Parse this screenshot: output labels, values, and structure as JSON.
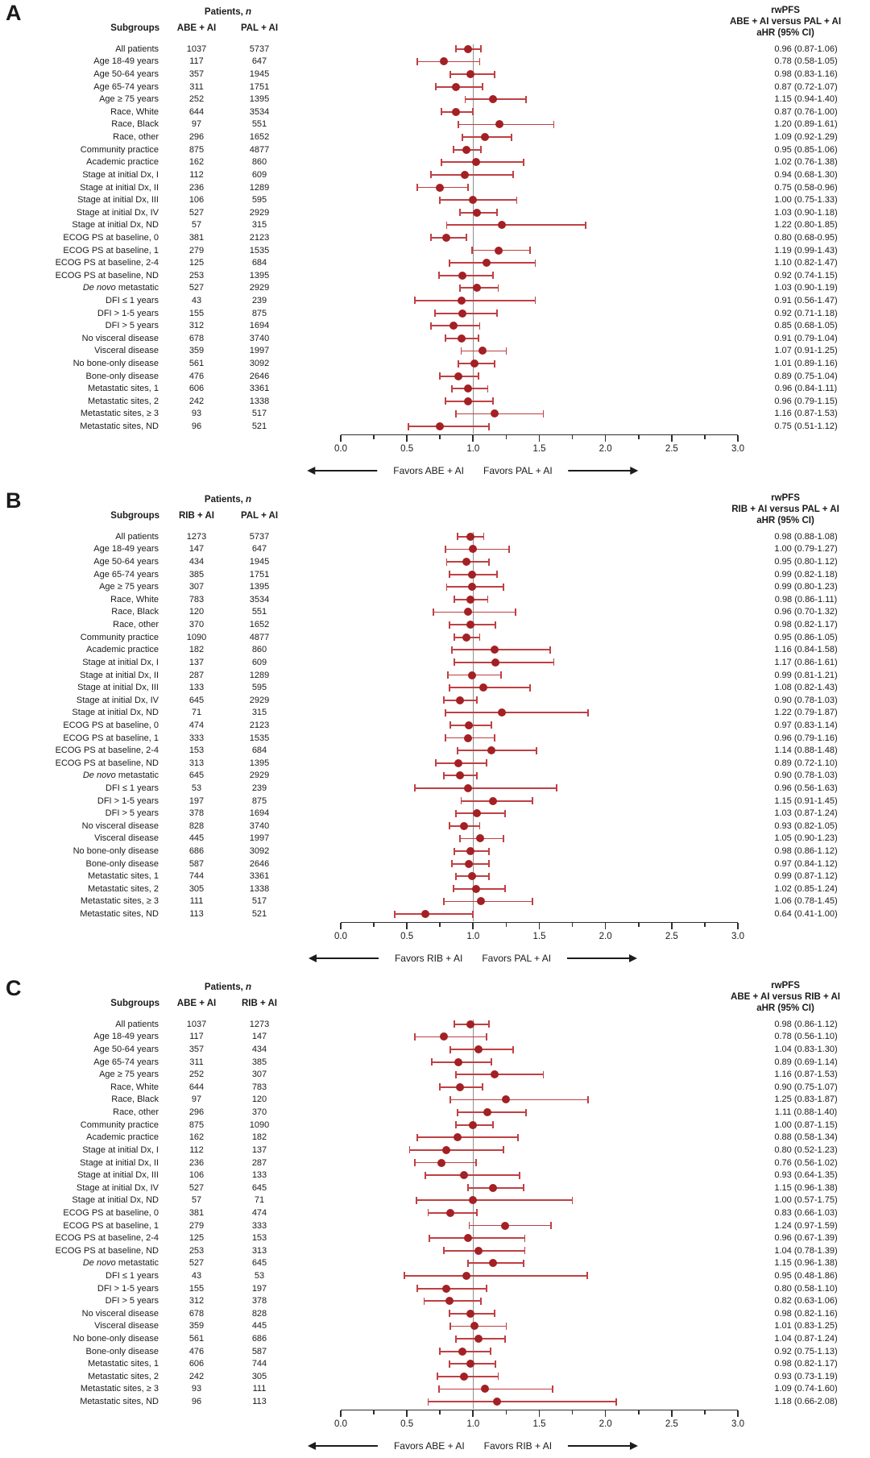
{
  "colors": {
    "marker": "#a32024",
    "ci_line": "#bf4043",
    "reference_line": "#8f8f8f",
    "axis_line": "#2e2e2e",
    "text": "#1a1a1a"
  },
  "axis": {
    "min": 0,
    "max": 3,
    "major_step": 0.5,
    "minor_step": 0.25,
    "reference": 1.0,
    "tick_labels": [
      "0.0",
      "0.5",
      "1.0",
      "1.5",
      "2.0",
      "2.5",
      "3.0"
    ]
  },
  "chart_data": [
    {
      "type": "scatter",
      "style": "forest-plot",
      "panel_label": "A",
      "patients_header_prefix": "Patients,",
      "patients_header_n": "n",
      "subgroups_header": "Subgroups",
      "arm1": "ABE + AI",
      "arm2": "PAL + AI",
      "right_header_line1": "rwPFS",
      "right_header_line2": "ABE + AI versus PAL + AI",
      "right_header_line3": "aHR (95% CI)",
      "favors_left": "Favors ABE + AI",
      "favors_right": "Favors PAL + AI",
      "rows": [
        {
          "label": "All patients",
          "n1": "1037",
          "n2": "5737",
          "hr": 0.96,
          "lo": 0.87,
          "hi": 1.06
        },
        {
          "label": "Age 18-49 years",
          "n1": "117",
          "n2": "647",
          "hr": 0.78,
          "lo": 0.58,
          "hi": 1.05
        },
        {
          "label": "Age 50-64 years",
          "n1": "357",
          "n2": "1945",
          "hr": 0.98,
          "lo": 0.83,
          "hi": 1.16
        },
        {
          "label": "Age 65-74 years",
          "n1": "311",
          "n2": "1751",
          "hr": 0.87,
          "lo": 0.72,
          "hi": 1.07
        },
        {
          "label": "Age ≥ 75 years",
          "n1": "252",
          "n2": "1395",
          "hr": 1.15,
          "lo": 0.94,
          "hi": 1.4
        },
        {
          "label": "Race, White",
          "n1": "644",
          "n2": "3534",
          "hr": 0.87,
          "lo": 0.76,
          "hi": 1.0
        },
        {
          "label": "Race, Black",
          "n1": "97",
          "n2": "551",
          "hr": 1.2,
          "lo": 0.89,
          "hi": 1.61
        },
        {
          "label": "Race, other",
          "n1": "296",
          "n2": "1652",
          "hr": 1.09,
          "lo": 0.92,
          "hi": 1.29
        },
        {
          "label": "Community practice",
          "n1": "875",
          "n2": "4877",
          "hr": 0.95,
          "lo": 0.85,
          "hi": 1.06
        },
        {
          "label": "Academic practice",
          "n1": "162",
          "n2": "860",
          "hr": 1.02,
          "lo": 0.76,
          "hi": 1.38
        },
        {
          "label": "Stage at initial Dx, I",
          "n1": "112",
          "n2": "609",
          "hr": 0.94,
          "lo": 0.68,
          "hi": 1.3
        },
        {
          "label": "Stage at initial Dx, II",
          "n1": "236",
          "n2": "1289",
          "hr": 0.75,
          "lo": 0.58,
          "hi": 0.96
        },
        {
          "label": "Stage at initial Dx, III",
          "n1": "106",
          "n2": "595",
          "hr": 1.0,
          "lo": 0.75,
          "hi": 1.33
        },
        {
          "label": "Stage at initial Dx, IV",
          "n1": "527",
          "n2": "2929",
          "hr": 1.03,
          "lo": 0.9,
          "hi": 1.18
        },
        {
          "label": "Stage at initial Dx, ND",
          "n1": "57",
          "n2": "315",
          "hr": 1.22,
          "lo": 0.8,
          "hi": 1.85
        },
        {
          "label": "ECOG PS at baseline, 0",
          "n1": "381",
          "n2": "2123",
          "hr": 0.8,
          "lo": 0.68,
          "hi": 0.95
        },
        {
          "label": "ECOG PS at baseline, 1",
          "n1": "279",
          "n2": "1535",
          "hr": 1.19,
          "lo": 0.99,
          "hi": 1.43
        },
        {
          "label": "ECOG PS at baseline, 2-4",
          "n1": "125",
          "n2": "684",
          "hr": 1.1,
          "lo": 0.82,
          "hi": 1.47
        },
        {
          "label": "ECOG PS at baseline, ND",
          "n1": "253",
          "n2": "1395",
          "hr": 0.92,
          "lo": 0.74,
          "hi": 1.15
        },
        {
          "em": "De novo",
          "label": "metastatic",
          "n1": "527",
          "n2": "2929",
          "hr": 1.03,
          "lo": 0.9,
          "hi": 1.19
        },
        {
          "label": "DFI ≤ 1 years",
          "n1": "43",
          "n2": "239",
          "hr": 0.91,
          "lo": 0.56,
          "hi": 1.47
        },
        {
          "label": "DFI > 1-5 years",
          "n1": "155",
          "n2": "875",
          "hr": 0.92,
          "lo": 0.71,
          "hi": 1.18
        },
        {
          "label": "DFI > 5 years",
          "n1": "312",
          "n2": "1694",
          "hr": 0.85,
          "lo": 0.68,
          "hi": 1.05
        },
        {
          "label": "No visceral disease",
          "n1": "678",
          "n2": "3740",
          "hr": 0.91,
          "lo": 0.79,
          "hi": 1.04
        },
        {
          "label": "Visceral disease",
          "n1": "359",
          "n2": "1997",
          "hr": 1.07,
          "lo": 0.91,
          "hi": 1.25
        },
        {
          "label": "No bone-only disease",
          "n1": "561",
          "n2": "3092",
          "hr": 1.01,
          "lo": 0.89,
          "hi": 1.16
        },
        {
          "label": "Bone-only disease",
          "n1": "476",
          "n2": "2646",
          "hr": 0.89,
          "lo": 0.75,
          "hi": 1.04
        },
        {
          "label": "Metastatic sites, 1",
          "n1": "606",
          "n2": "3361",
          "hr": 0.96,
          "lo": 0.84,
          "hi": 1.11
        },
        {
          "label": "Metastatic sites, 2",
          "n1": "242",
          "n2": "1338",
          "hr": 0.96,
          "lo": 0.79,
          "hi": 1.15
        },
        {
          "label": "Metastatic sites, ≥ 3",
          "n1": "93",
          "n2": "517",
          "hr": 1.16,
          "lo": 0.87,
          "hi": 1.53
        },
        {
          "label": "Metastatic sites, ND",
          "n1": "96",
          "n2": "521",
          "hr": 0.75,
          "lo": 0.51,
          "hi": 1.12
        }
      ]
    },
    {
      "type": "scatter",
      "style": "forest-plot",
      "panel_label": "B",
      "patients_header_prefix": "Patients,",
      "patients_header_n": "n",
      "subgroups_header": "Subgroups",
      "arm1": "RIB + AI",
      "arm2": "PAL + AI",
      "right_header_line1": "rwPFS",
      "right_header_line2": "RIB + AI versus PAL + AI",
      "right_header_line3": "aHR (95% CI)",
      "favors_left": "Favors RIB + AI",
      "favors_right": "Favors PAL + AI",
      "rows": [
        {
          "label": "All patients",
          "n1": "1273",
          "n2": "5737",
          "hr": 0.98,
          "lo": 0.88,
          "hi": 1.08
        },
        {
          "label": "Age 18-49 years",
          "n1": "147",
          "n2": "647",
          "hr": 1.0,
          "lo": 0.79,
          "hi": 1.27
        },
        {
          "label": "Age 50-64 years",
          "n1": "434",
          "n2": "1945",
          "hr": 0.95,
          "lo": 0.8,
          "hi": 1.12
        },
        {
          "label": "Age 65-74 years",
          "n1": "385",
          "n2": "1751",
          "hr": 0.99,
          "lo": 0.82,
          "hi": 1.18
        },
        {
          "label": "Age ≥ 75 years",
          "n1": "307",
          "n2": "1395",
          "hr": 0.99,
          "lo": 0.8,
          "hi": 1.23
        },
        {
          "label": "Race, White",
          "n1": "783",
          "n2": "3534",
          "hr": 0.98,
          "lo": 0.86,
          "hi": 1.11
        },
        {
          "label": "Race, Black",
          "n1": "120",
          "n2": "551",
          "hr": 0.96,
          "lo": 0.7,
          "hi": 1.32
        },
        {
          "label": "Race, other",
          "n1": "370",
          "n2": "1652",
          "hr": 0.98,
          "lo": 0.82,
          "hi": 1.17
        },
        {
          "label": "Community practice",
          "n1": "1090",
          "n2": "4877",
          "hr": 0.95,
          "lo": 0.86,
          "hi": 1.05
        },
        {
          "label": "Academic practice",
          "n1": "182",
          "n2": "860",
          "hr": 1.16,
          "lo": 0.84,
          "hi": 1.58
        },
        {
          "label": "Stage at initial Dx, I",
          "n1": "137",
          "n2": "609",
          "hr": 1.17,
          "lo": 0.86,
          "hi": 1.61
        },
        {
          "label": "Stage at initial Dx, II",
          "n1": "287",
          "n2": "1289",
          "hr": 0.99,
          "lo": 0.81,
          "hi": 1.21
        },
        {
          "label": "Stage at initial Dx, III",
          "n1": "133",
          "n2": "595",
          "hr": 1.08,
          "lo": 0.82,
          "hi": 1.43
        },
        {
          "label": "Stage at initial Dx, IV",
          "n1": "645",
          "n2": "2929",
          "hr": 0.9,
          "lo": 0.78,
          "hi": 1.03
        },
        {
          "label": "Stage at initial Dx, ND",
          "n1": "71",
          "n2": "315",
          "hr": 1.22,
          "lo": 0.79,
          "hi": 1.87
        },
        {
          "label": "ECOG PS at baseline, 0",
          "n1": "474",
          "n2": "2123",
          "hr": 0.97,
          "lo": 0.83,
          "hi": 1.14
        },
        {
          "label": "ECOG PS at baseline, 1",
          "n1": "333",
          "n2": "1535",
          "hr": 0.96,
          "lo": 0.79,
          "hi": 1.16
        },
        {
          "label": "ECOG PS at baseline, 2-4",
          "n1": "153",
          "n2": "684",
          "hr": 1.14,
          "lo": 0.88,
          "hi": 1.48
        },
        {
          "label": "ECOG PS at baseline, ND",
          "n1": "313",
          "n2": "1395",
          "hr": 0.89,
          "lo": 0.72,
          "hi": 1.1
        },
        {
          "em": "De novo",
          "label": "metastatic",
          "n1": "645",
          "n2": "2929",
          "hr": 0.9,
          "lo": 0.78,
          "hi": 1.03
        },
        {
          "label": "DFI ≤ 1 years",
          "n1": "53",
          "n2": "239",
          "hr": 0.96,
          "lo": 0.56,
          "hi": 1.63
        },
        {
          "label": "DFI > 1-5 years",
          "n1": "197",
          "n2": "875",
          "hr": 1.15,
          "lo": 0.91,
          "hi": 1.45
        },
        {
          "label": "DFI > 5 years",
          "n1": "378",
          "n2": "1694",
          "hr": 1.03,
          "lo": 0.87,
          "hi": 1.24
        },
        {
          "label": "No visceral disease",
          "n1": "828",
          "n2": "3740",
          "hr": 0.93,
          "lo": 0.82,
          "hi": 1.05
        },
        {
          "label": "Visceral disease",
          "n1": "445",
          "n2": "1997",
          "hr": 1.05,
          "lo": 0.9,
          "hi": 1.23
        },
        {
          "label": "No bone-only disease",
          "n1": "686",
          "n2": "3092",
          "hr": 0.98,
          "lo": 0.86,
          "hi": 1.12
        },
        {
          "label": "Bone-only disease",
          "n1": "587",
          "n2": "2646",
          "hr": 0.97,
          "lo": 0.84,
          "hi": 1.12
        },
        {
          "label": "Metastatic sites, 1",
          "n1": "744",
          "n2": "3361",
          "hr": 0.99,
          "lo": 0.87,
          "hi": 1.12
        },
        {
          "label": "Metastatic sites, 2",
          "n1": "305",
          "n2": "1338",
          "hr": 1.02,
          "lo": 0.85,
          "hi": 1.24
        },
        {
          "label": "Metastatic sites, ≥ 3",
          "n1": "111",
          "n2": "517",
          "hr": 1.06,
          "lo": 0.78,
          "hi": 1.45
        },
        {
          "label": "Metastatic sites, ND",
          "n1": "113",
          "n2": "521",
          "hr": 0.64,
          "lo": 0.41,
          "hi": 1.0
        }
      ]
    },
    {
      "type": "scatter",
      "style": "forest-plot",
      "panel_label": "C",
      "patients_header_prefix": "Patients,",
      "patients_header_n": "n",
      "subgroups_header": "Subgroups",
      "arm1": "ABE + AI",
      "arm2": "RIB + AI",
      "right_header_line1": "rwPFS",
      "right_header_line2": "ABE + AI versus RIB + AI",
      "right_header_line3": "aHR (95% CI)",
      "favors_left": "Favors ABE + AI",
      "favors_right": "Favors RIB + AI",
      "rows": [
        {
          "label": "All patients",
          "n1": "1037",
          "n2": "1273",
          "hr": 0.98,
          "lo": 0.86,
          "hi": 1.12
        },
        {
          "label": "Age 18-49 years",
          "n1": "117",
          "n2": "147",
          "hr": 0.78,
          "lo": 0.56,
          "hi": 1.1
        },
        {
          "label": "Age 50-64 years",
          "n1": "357",
          "n2": "434",
          "hr": 1.04,
          "lo": 0.83,
          "hi": 1.3
        },
        {
          "label": "Age 65-74 years",
          "n1": "311",
          "n2": "385",
          "hr": 0.89,
          "lo": 0.69,
          "hi": 1.14
        },
        {
          "label": "Age ≥ 75 years",
          "n1": "252",
          "n2": "307",
          "hr": 1.16,
          "lo": 0.87,
          "hi": 1.53
        },
        {
          "label": "Race, White",
          "n1": "644",
          "n2": "783",
          "hr": 0.9,
          "lo": 0.75,
          "hi": 1.07
        },
        {
          "label": "Race, Black",
          "n1": "97",
          "n2": "120",
          "hr": 1.25,
          "lo": 0.83,
          "hi": 1.87
        },
        {
          "label": "Race, other",
          "n1": "296",
          "n2": "370",
          "hr": 1.11,
          "lo": 0.88,
          "hi": 1.4
        },
        {
          "label": "Community practice",
          "n1": "875",
          "n2": "1090",
          "hr": 1.0,
          "lo": 0.87,
          "hi": 1.15
        },
        {
          "label": "Academic practice",
          "n1": "162",
          "n2": "182",
          "hr": 0.88,
          "lo": 0.58,
          "hi": 1.34
        },
        {
          "label": "Stage at initial Dx, I",
          "n1": "112",
          "n2": "137",
          "hr": 0.8,
          "lo": 0.52,
          "hi": 1.23
        },
        {
          "label": "Stage at initial Dx, II",
          "n1": "236",
          "n2": "287",
          "hr": 0.76,
          "lo": 0.56,
          "hi": 1.02
        },
        {
          "label": "Stage at initial Dx, III",
          "n1": "106",
          "n2": "133",
          "hr": 0.93,
          "lo": 0.64,
          "hi": 1.35
        },
        {
          "label": "Stage at initial Dx, IV",
          "n1": "527",
          "n2": "645",
          "hr": 1.15,
          "lo": 0.96,
          "hi": 1.38
        },
        {
          "label": "Stage at initial Dx, ND",
          "n1": "57",
          "n2": "71",
          "hr": 1.0,
          "lo": 0.57,
          "hi": 1.75
        },
        {
          "label": "ECOG PS at baseline, 0",
          "n1": "381",
          "n2": "474",
          "hr": 0.83,
          "lo": 0.66,
          "hi": 1.03
        },
        {
          "label": "ECOG PS at baseline, 1",
          "n1": "279",
          "n2": "333",
          "hr": 1.24,
          "lo": 0.97,
          "hi": 1.59
        },
        {
          "label": "ECOG PS at baseline, 2-4",
          "n1": "125",
          "n2": "153",
          "hr": 0.96,
          "lo": 0.67,
          "hi": 1.39
        },
        {
          "label": "ECOG PS at baseline, ND",
          "n1": "253",
          "n2": "313",
          "hr": 1.04,
          "lo": 0.78,
          "hi": 1.39
        },
        {
          "em": "De novo",
          "label": "metastatic",
          "n1": "527",
          "n2": "645",
          "hr": 1.15,
          "lo": 0.96,
          "hi": 1.38
        },
        {
          "label": "DFI ≤ 1 years",
          "n1": "43",
          "n2": "53",
          "hr": 0.95,
          "lo": 0.48,
          "hi": 1.86
        },
        {
          "label": "DFI > 1-5 years",
          "n1": "155",
          "n2": "197",
          "hr": 0.8,
          "lo": 0.58,
          "hi": 1.1
        },
        {
          "label": "DFI > 5 years",
          "n1": "312",
          "n2": "378",
          "hr": 0.82,
          "lo": 0.63,
          "hi": 1.06
        },
        {
          "label": "No visceral disease",
          "n1": "678",
          "n2": "828",
          "hr": 0.98,
          "lo": 0.82,
          "hi": 1.16
        },
        {
          "label": "Visceral disease",
          "n1": "359",
          "n2": "445",
          "hr": 1.01,
          "lo": 0.83,
          "hi": 1.25
        },
        {
          "label": "No bone-only disease",
          "n1": "561",
          "n2": "686",
          "hr": 1.04,
          "lo": 0.87,
          "hi": 1.24
        },
        {
          "label": "Bone-only disease",
          "n1": "476",
          "n2": "587",
          "hr": 0.92,
          "lo": 0.75,
          "hi": 1.13
        },
        {
          "label": "Metastatic sites, 1",
          "n1": "606",
          "n2": "744",
          "hr": 0.98,
          "lo": 0.82,
          "hi": 1.17
        },
        {
          "label": "Metastatic sites, 2",
          "n1": "242",
          "n2": "305",
          "hr": 0.93,
          "lo": 0.73,
          "hi": 1.19
        },
        {
          "label": "Metastatic sites, ≥ 3",
          "n1": "93",
          "n2": "111",
          "hr": 1.09,
          "lo": 0.74,
          "hi": 1.6
        },
        {
          "label": "Metastatic sites, ND",
          "n1": "96",
          "n2": "113",
          "hr": 1.18,
          "lo": 0.66,
          "hi": 2.08
        }
      ]
    }
  ]
}
